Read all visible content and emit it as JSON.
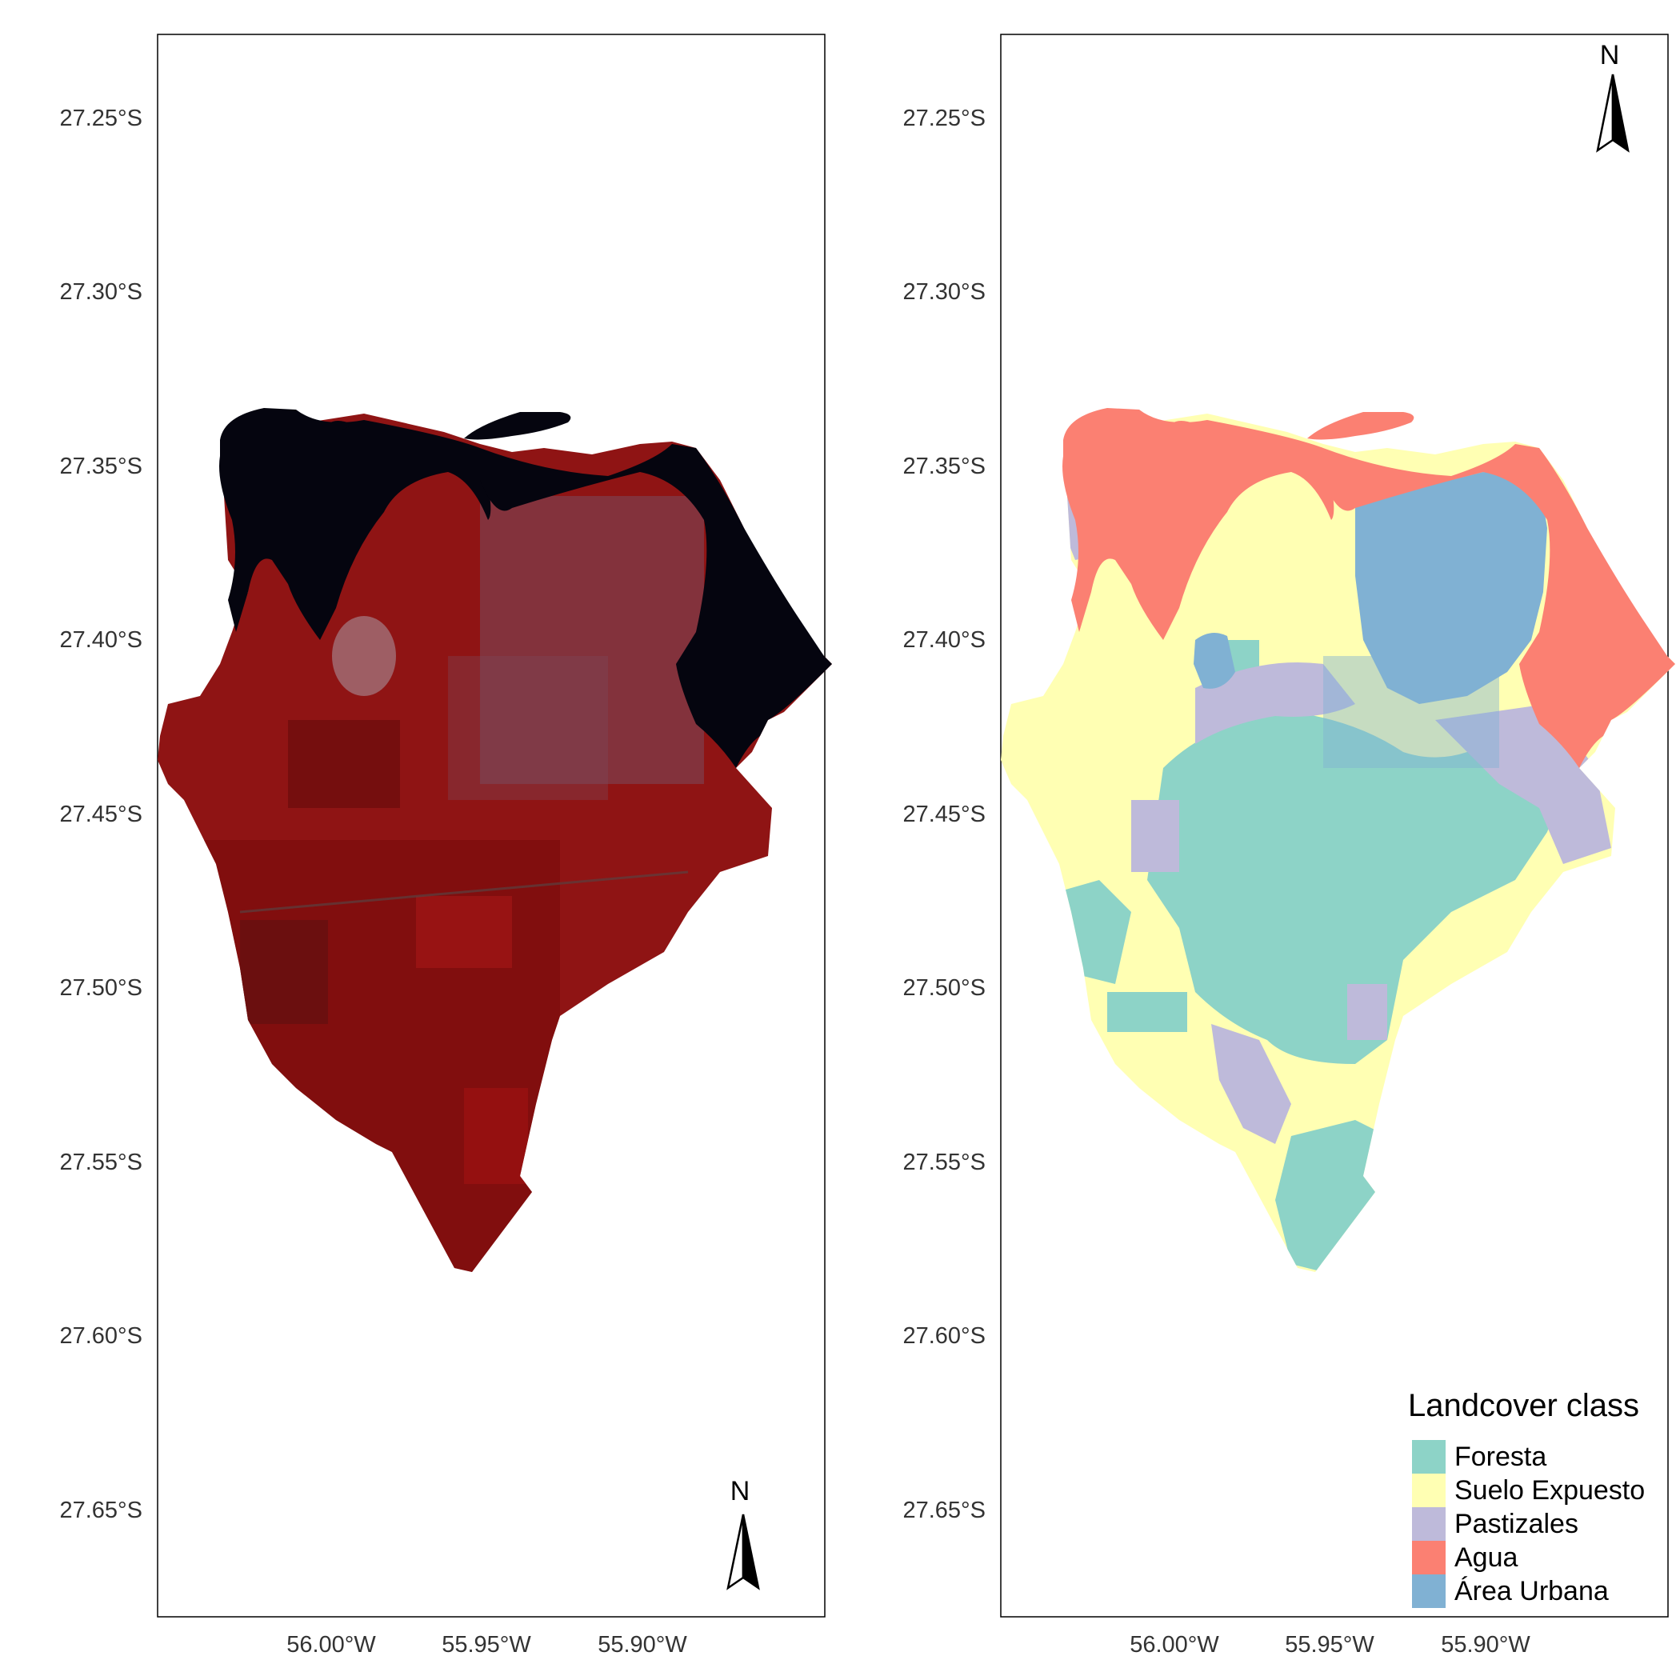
{
  "maps": [
    {
      "id": "false-color",
      "y_ticks": [
        "27.25°S",
        "27.30°S",
        "27.35°S",
        "27.40°S",
        "27.45°S",
        "27.50°S",
        "27.55°S",
        "27.60°S",
        "27.65°S"
      ],
      "x_ticks": [
        "56.00°W",
        "55.95°W",
        "55.90°W"
      ],
      "north_label": "N",
      "colors": {
        "land": "#8f1414",
        "water": "#05050f",
        "urban": "#7a4a5c"
      }
    },
    {
      "id": "landcover",
      "y_ticks": [
        "27.25°S",
        "27.30°S",
        "27.35°S",
        "27.40°S",
        "27.45°S",
        "27.50°S",
        "27.55°S",
        "27.60°S",
        "27.65°S"
      ],
      "x_ticks": [
        "56.00°W",
        "55.95°W",
        "55.90°W"
      ],
      "north_label": "N"
    }
  ],
  "legend": {
    "title": "Landcover class",
    "items": [
      {
        "label": "Foresta",
        "color": "#8dd3c7"
      },
      {
        "label": "Suelo Expuesto",
        "color": "#ffffb3"
      },
      {
        "label": "Pastizales",
        "color": "#bebada"
      },
      {
        "label": "Agua",
        "color": "#fb8072"
      },
      {
        "label": "Área Urbana",
        "color": "#80b1d3"
      }
    ]
  }
}
